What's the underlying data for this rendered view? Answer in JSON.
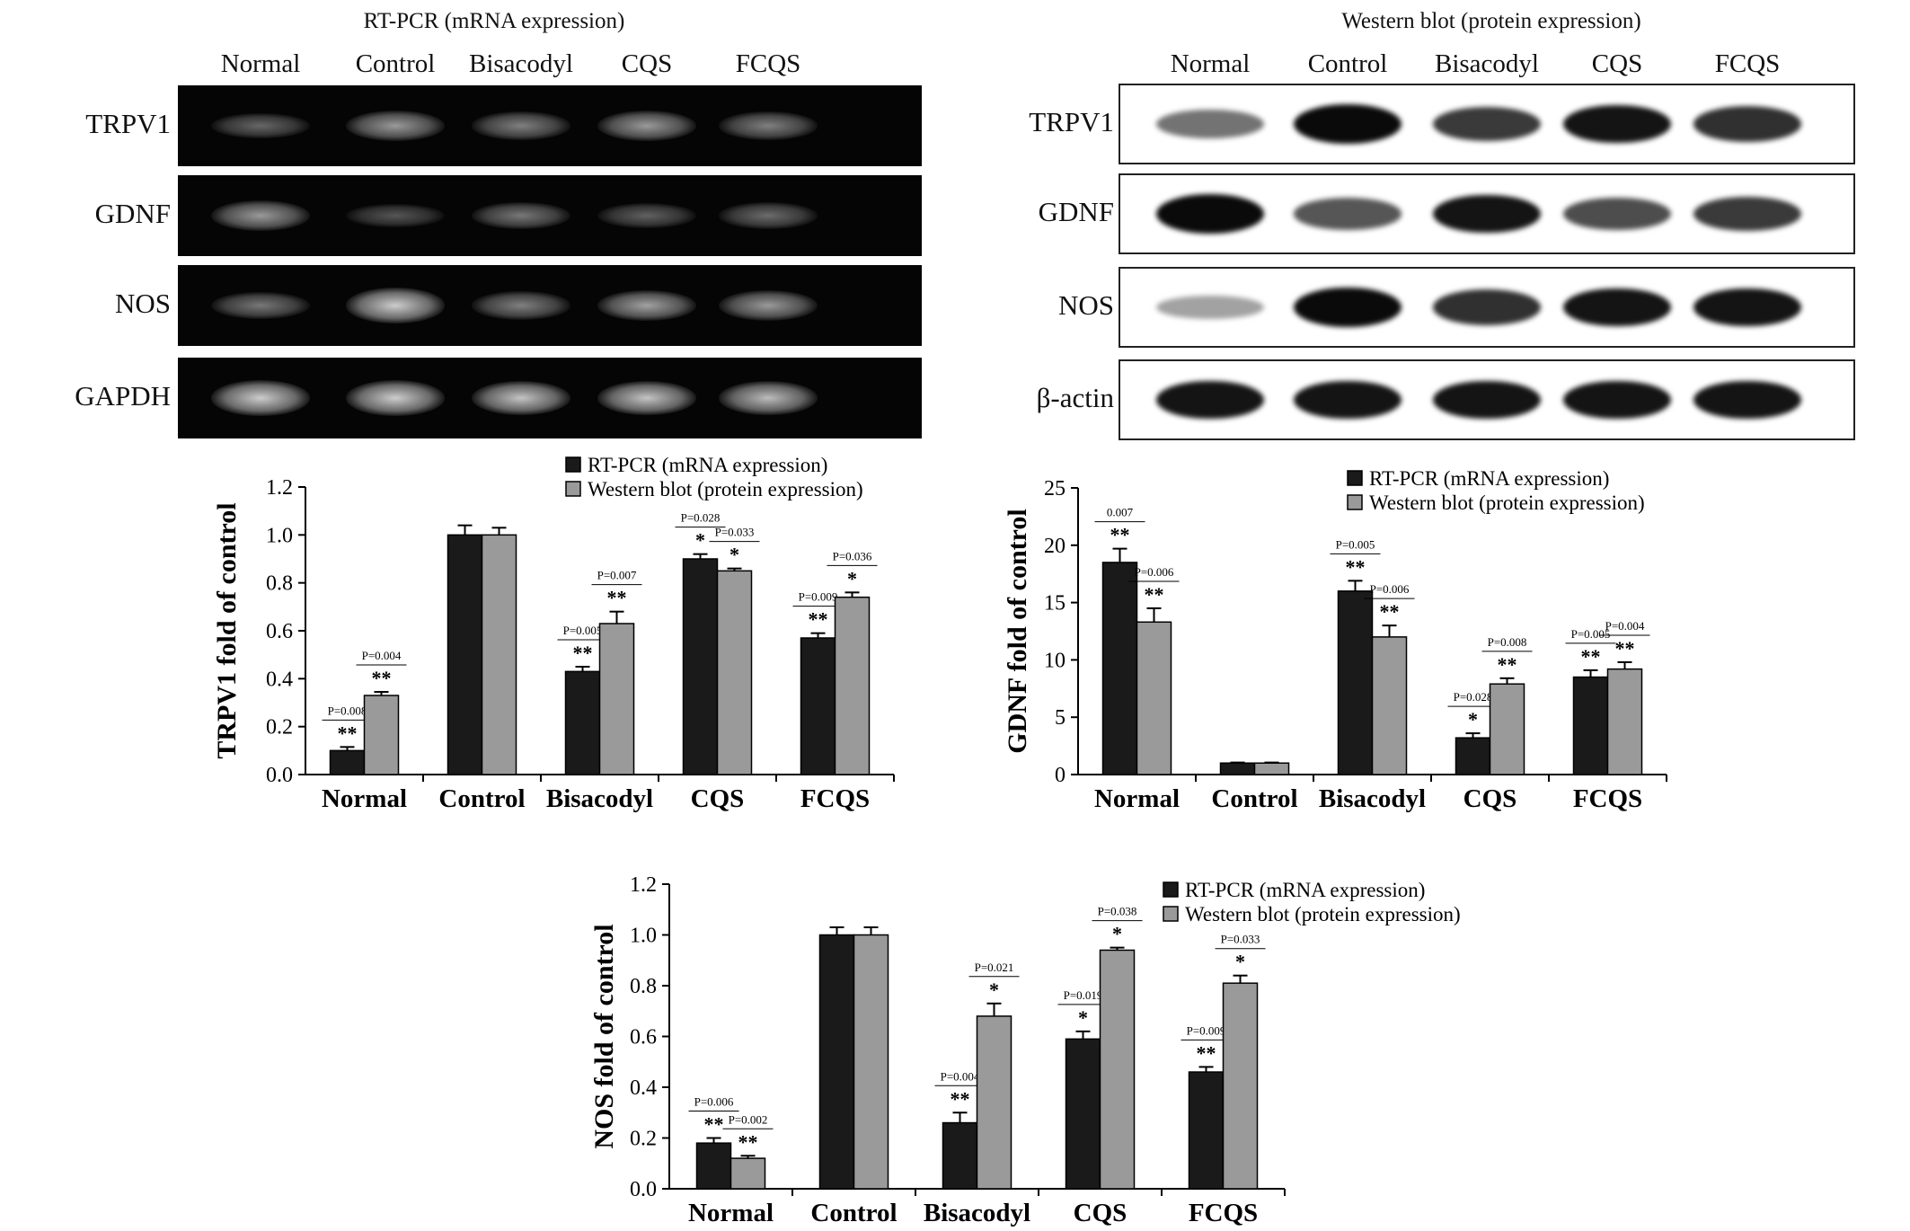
{
  "gels": {
    "rtpcr": {
      "title": "RT-PCR (mRNA expression)",
      "lanes": [
        "Normal",
        "Control",
        "Bisacodyl",
        "CQS",
        "FCQS"
      ],
      "rows": [
        {
          "label": "TRPV1",
          "intensity": [
            0.25,
            0.55,
            0.4,
            0.55,
            0.4
          ]
        },
        {
          "label": "GDNF",
          "intensity": [
            0.55,
            0.15,
            0.35,
            0.22,
            0.28
          ]
        },
        {
          "label": "NOS",
          "intensity": [
            0.35,
            0.85,
            0.4,
            0.6,
            0.55
          ]
        },
        {
          "label": "GAPDH",
          "intensity": [
            0.85,
            0.85,
            0.8,
            0.8,
            0.75
          ]
        }
      ]
    },
    "western": {
      "title": "Western blot  (protein expression)",
      "lanes": [
        "Normal",
        "Control",
        "Bisacodyl",
        "CQS",
        "FCQS"
      ],
      "rows": [
        {
          "label": "TRPV1",
          "intensity": [
            0.45,
            1.0,
            0.75,
            0.95,
            0.8
          ]
        },
        {
          "label": "GDNF",
          "intensity": [
            1.0,
            0.6,
            0.95,
            0.65,
            0.75
          ]
        },
        {
          "label": "NOS",
          "intensity": [
            0.2,
            1.0,
            0.8,
            0.95,
            0.95
          ]
        },
        {
          "label": "β-actin",
          "intensity": [
            0.95,
            0.95,
            0.95,
            0.95,
            0.95
          ]
        }
      ]
    }
  },
  "chart_data": [
    {
      "type": "bar",
      "ylabel": "TRPV1 fold of control",
      "ylim": [
        0,
        1.2
      ],
      "yticks": [
        "0.0",
        "0.2",
        "0.4",
        "0.6",
        "0.8",
        "1.0",
        "1.2"
      ],
      "categories": [
        "Normal",
        "Control",
        "Bisacodyl",
        "CQS",
        "FCQS"
      ],
      "series": [
        {
          "name": "RT-PCR (mRNA expression)",
          "color": "#1a1a1a",
          "values": [
            0.1,
            1.0,
            0.43,
            0.9,
            0.57
          ],
          "errors": [
            0.015,
            0.04,
            0.02,
            0.02,
            0.02
          ]
        },
        {
          "name": "Western blot (protein expression)",
          "color": "#9a9a9a",
          "values": [
            0.33,
            1.0,
            0.63,
            0.85,
            0.74
          ],
          "errors": [
            0.015,
            0.03,
            0.05,
            0.01,
            0.02
          ]
        }
      ],
      "annotations": [
        [
          "**",
          "**"
        ],
        [
          "",
          ""
        ],
        [
          "**",
          "**"
        ],
        [
          "*",
          "*"
        ],
        [
          "**",
          "*"
        ]
      ],
      "pvalues": [
        [
          "P=0.008",
          "P=0.004"
        ],
        [
          "",
          ""
        ],
        [
          "P=0.005",
          "P=0.007"
        ],
        [
          "P=0.028",
          "P=0.033"
        ],
        [
          "P=0.009",
          "P=0.036"
        ]
      ]
    },
    {
      "type": "bar",
      "ylabel": "GDNF fold of control",
      "ylim": [
        0,
        25
      ],
      "yticks": [
        "0",
        "5",
        "10",
        "15",
        "20",
        "25"
      ],
      "categories": [
        "Normal",
        "Control",
        "Bisacodyl",
        "CQS",
        "FCQS"
      ],
      "series": [
        {
          "name": "RT-PCR (mRNA expression)",
          "color": "#1a1a1a",
          "values": [
            18.5,
            1.0,
            16.0,
            3.2,
            8.5
          ],
          "errors": [
            1.2,
            0.05,
            0.9,
            0.4,
            0.6
          ]
        },
        {
          "name": "Western blot (protein expression)",
          "color": "#9a9a9a",
          "values": [
            13.3,
            1.0,
            12.0,
            7.9,
            9.2
          ],
          "errors": [
            1.2,
            0.05,
            1.0,
            0.5,
            0.6
          ]
        }
      ],
      "annotations": [
        [
          "**",
          "**"
        ],
        [
          "",
          ""
        ],
        [
          "**",
          "**"
        ],
        [
          "*",
          "**"
        ],
        [
          "**",
          "**"
        ]
      ],
      "pvalues": [
        [
          "0.007",
          "P=0.006"
        ],
        [
          "",
          ""
        ],
        [
          "P=0.005",
          "P=0.006"
        ],
        [
          "P=0.028",
          "P=0.008"
        ],
        [
          "P=0.005",
          "P=0.004"
        ]
      ]
    },
    {
      "type": "bar",
      "ylabel": "NOS fold of control",
      "ylim": [
        0,
        1.2
      ],
      "yticks": [
        "0.0",
        "0.2",
        "0.4",
        "0.6",
        "0.8",
        "1.0",
        "1.2"
      ],
      "categories": [
        "Normal",
        "Control",
        "Bisacodyl",
        "CQS",
        "FCQS"
      ],
      "series": [
        {
          "name": "RT-PCR (mRNA expression)",
          "color": "#1a1a1a",
          "values": [
            0.18,
            1.0,
            0.26,
            0.59,
            0.46
          ],
          "errors": [
            0.02,
            0.03,
            0.04,
            0.03,
            0.02
          ]
        },
        {
          "name": "Western blot (protein expression)",
          "color": "#9a9a9a",
          "values": [
            0.12,
            1.0,
            0.68,
            0.94,
            0.81
          ],
          "errors": [
            0.01,
            0.03,
            0.05,
            0.01,
            0.03
          ]
        }
      ],
      "annotations": [
        [
          "**",
          "**"
        ],
        [
          "",
          ""
        ],
        [
          "**",
          "*"
        ],
        [
          "*",
          "*"
        ],
        [
          "**",
          "*"
        ]
      ],
      "pvalues": [
        [
          "P=0.006",
          "P=0.002"
        ],
        [
          "",
          ""
        ],
        [
          "P=0.004",
          "P=0.021"
        ],
        [
          "P=0.019",
          "P=0.038"
        ],
        [
          "P=0.009",
          "P=0.033"
        ]
      ]
    }
  ]
}
